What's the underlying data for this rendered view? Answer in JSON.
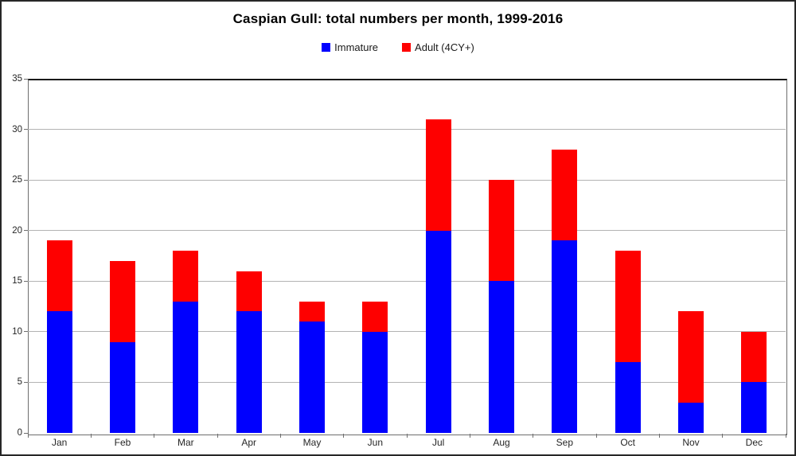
{
  "chart_data": {
    "type": "bar",
    "stacked": true,
    "title": "Caspian Gull: total numbers per month, 1999-2016",
    "categories": [
      "Jan",
      "Feb",
      "Mar",
      "Apr",
      "May",
      "Jun",
      "Jul",
      "Aug",
      "Sep",
      "Oct",
      "Nov",
      "Dec"
    ],
    "series": [
      {
        "name": "Immature",
        "color": "#0000fe",
        "values": [
          12,
          9,
          13,
          12,
          11,
          10,
          20,
          15,
          19,
          7,
          3,
          5
        ]
      },
      {
        "name": "Adult (4CY+)",
        "color": "#fe0000",
        "values": [
          7,
          8,
          5,
          4,
          2,
          3,
          11,
          10,
          9,
          11,
          9,
          5
        ]
      }
    ],
    "totals": [
      19,
      17,
      18,
      16,
      13,
      13,
      31,
      25,
      28,
      18,
      12,
      10
    ],
    "xlabel": "",
    "ylabel": "",
    "ylim": [
      0,
      35
    ],
    "yticks": [
      0,
      5,
      10,
      15,
      20,
      25,
      30,
      35
    ],
    "grid": true,
    "legend_position": "top-center"
  },
  "colors": {
    "gridline": "#b3b3b3",
    "axis": "#6e6e6e",
    "plot_top_border": "#1a1a1a",
    "text": "#262626",
    "frame_border": "#262626",
    "background": "#ffffff"
  }
}
